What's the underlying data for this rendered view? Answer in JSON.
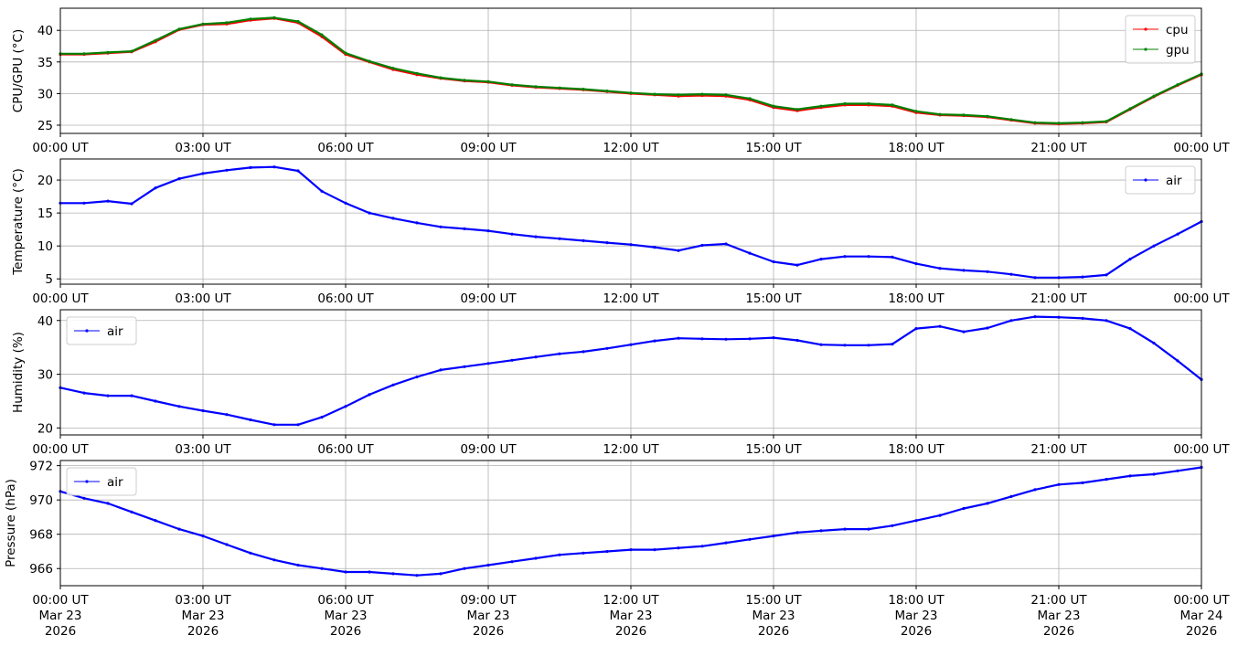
{
  "colors": {
    "cpu": "#ff0000",
    "gpu": "#008000",
    "air": "#0000ff",
    "grid": "#b0b0b0"
  },
  "x_ticks": [
    "00:00 UT",
    "03:00 UT",
    "06:00 UT",
    "09:00 UT",
    "12:00 UT",
    "15:00 UT",
    "18:00 UT",
    "21:00 UT",
    "00:00 UT"
  ],
  "x_ticks_bottom": [
    [
      "00:00 UT",
      "Mar 23",
      "2026"
    ],
    [
      "03:00 UT",
      "Mar 23",
      "2026"
    ],
    [
      "06:00 UT",
      "Mar 23",
      "2026"
    ],
    [
      "09:00 UT",
      "Mar 23",
      "2026"
    ],
    [
      "12:00 UT",
      "Mar 23",
      "2026"
    ],
    [
      "15:00 UT",
      "Mar 23",
      "2026"
    ],
    [
      "18:00 UT",
      "Mar 23",
      "2026"
    ],
    [
      "21:00 UT",
      "Mar 23",
      "2026"
    ],
    [
      "00:00 UT",
      "Mar 24",
      "2026"
    ]
  ],
  "chart_data": [
    {
      "type": "line",
      "ylabel": "CPU/GPU (°C)",
      "ylim": [
        23.7,
        43.5
      ],
      "yticks": [
        25,
        30,
        35,
        40
      ],
      "grid": true,
      "legend": "top-right",
      "x": [
        "2026-03-23T00:00",
        "2026-03-23T00:30",
        "2026-03-23T01:00",
        "2026-03-23T01:30",
        "2026-03-23T02:00",
        "2026-03-23T02:30",
        "2026-03-23T03:00",
        "2026-03-23T03:30",
        "2026-03-23T04:00",
        "2026-03-23T04:30",
        "2026-03-23T05:00",
        "2026-03-23T05:30",
        "2026-03-23T06:00",
        "2026-03-23T06:30",
        "2026-03-23T07:00",
        "2026-03-23T07:30",
        "2026-03-23T08:00",
        "2026-03-23T08:30",
        "2026-03-23T09:00",
        "2026-03-23T09:30",
        "2026-03-23T10:00",
        "2026-03-23T10:30",
        "2026-03-23T11:00",
        "2026-03-23T11:30",
        "2026-03-23T12:00",
        "2026-03-23T12:30",
        "2026-03-23T13:00",
        "2026-03-23T13:30",
        "2026-03-23T14:00",
        "2026-03-23T14:30",
        "2026-03-23T15:00",
        "2026-03-23T15:30",
        "2026-03-23T16:00",
        "2026-03-23T16:30",
        "2026-03-23T17:00",
        "2026-03-23T17:30",
        "2026-03-23T18:00",
        "2026-03-23T18:30",
        "2026-03-23T19:00",
        "2026-03-23T19:30",
        "2026-03-23T20:00",
        "2026-03-23T20:30",
        "2026-03-23T21:00",
        "2026-03-23T21:30",
        "2026-03-23T22:00",
        "2026-03-23T22:30",
        "2026-03-23T23:00",
        "2026-03-23T23:30",
        "2026-03-24T00:00"
      ],
      "series": [
        {
          "name": "cpu",
          "color": "#ff0000",
          "values": [
            36.2,
            36.2,
            36.4,
            36.6,
            38.2,
            40.1,
            40.9,
            41.0,
            41.6,
            41.9,
            41.2,
            39.0,
            36.2,
            35.0,
            33.8,
            33.0,
            32.4,
            32.0,
            31.8,
            31.3,
            31.0,
            30.8,
            30.6,
            30.3,
            30.0,
            29.8,
            29.6,
            29.7,
            29.6,
            29.0,
            27.8,
            27.3,
            27.8,
            28.2,
            28.2,
            28.0,
            27.0,
            26.6,
            26.5,
            26.3,
            25.8,
            25.3,
            25.2,
            25.3,
            25.5,
            27.5,
            29.5,
            31.3,
            33.0
          ]
        },
        {
          "name": "gpu",
          "color": "#008000",
          "values": [
            36.3,
            36.3,
            36.5,
            36.7,
            38.4,
            40.2,
            41.0,
            41.2,
            41.8,
            42.0,
            41.4,
            39.3,
            36.4,
            35.1,
            34.0,
            33.2,
            32.5,
            32.1,
            31.9,
            31.4,
            31.1,
            30.9,
            30.7,
            30.4,
            30.1,
            29.9,
            29.8,
            29.9,
            29.8,
            29.2,
            28.0,
            27.5,
            28.0,
            28.4,
            28.4,
            28.2,
            27.2,
            26.7,
            26.6,
            26.4,
            25.9,
            25.4,
            25.3,
            25.4,
            25.6,
            27.6,
            29.6,
            31.4,
            33.1
          ]
        }
      ]
    },
    {
      "type": "line",
      "ylabel": "Temperature (°C)",
      "ylim": [
        4.2,
        23.2
      ],
      "yticks": [
        5,
        10,
        15,
        20
      ],
      "grid": true,
      "legend": "top-right",
      "x": [
        "2026-03-23T00:00",
        "2026-03-23T00:30",
        "2026-03-23T01:00",
        "2026-03-23T01:30",
        "2026-03-23T02:00",
        "2026-03-23T02:30",
        "2026-03-23T03:00",
        "2026-03-23T03:30",
        "2026-03-23T04:00",
        "2026-03-23T04:30",
        "2026-03-23T05:00",
        "2026-03-23T05:30",
        "2026-03-23T06:00",
        "2026-03-23T06:30",
        "2026-03-23T07:00",
        "2026-03-23T07:30",
        "2026-03-23T08:00",
        "2026-03-23T08:30",
        "2026-03-23T09:00",
        "2026-03-23T09:30",
        "2026-03-23T10:00",
        "2026-03-23T10:30",
        "2026-03-23T11:00",
        "2026-03-23T11:30",
        "2026-03-23T12:00",
        "2026-03-23T12:30",
        "2026-03-23T13:00",
        "2026-03-23T13:30",
        "2026-03-23T14:00",
        "2026-03-23T14:30",
        "2026-03-23T15:00",
        "2026-03-23T15:30",
        "2026-03-23T16:00",
        "2026-03-23T16:30",
        "2026-03-23T17:00",
        "2026-03-23T17:30",
        "2026-03-23T18:00",
        "2026-03-23T18:30",
        "2026-03-23T19:00",
        "2026-03-23T19:30",
        "2026-03-23T20:00",
        "2026-03-23T20:30",
        "2026-03-23T21:00",
        "2026-03-23T21:30",
        "2026-03-23T22:00",
        "2026-03-23T22:30",
        "2026-03-23T23:00",
        "2026-03-23T23:30",
        "2026-03-24T00:00"
      ],
      "series": [
        {
          "name": "air",
          "color": "#0000ff",
          "values": [
            16.5,
            16.5,
            16.8,
            16.4,
            18.8,
            20.2,
            21.0,
            21.5,
            21.9,
            22.0,
            21.4,
            18.3,
            16.5,
            15.0,
            14.2,
            13.5,
            12.9,
            12.6,
            12.3,
            11.8,
            11.4,
            11.1,
            10.8,
            10.5,
            10.2,
            9.8,
            9.3,
            10.1,
            10.3,
            8.9,
            7.6,
            7.1,
            8.0,
            8.4,
            8.4,
            8.3,
            7.3,
            6.6,
            6.3,
            6.1,
            5.7,
            5.2,
            5.2,
            5.3,
            5.6,
            8.0,
            10.0,
            11.8,
            13.7
          ]
        }
      ]
    },
    {
      "type": "line",
      "ylabel": "Humidity (%)",
      "ylim": [
        18.7,
        42.0
      ],
      "yticks": [
        20,
        30,
        40
      ],
      "grid": true,
      "legend": "top-left",
      "x": [
        "2026-03-23T00:00",
        "2026-03-23T00:30",
        "2026-03-23T01:00",
        "2026-03-23T01:30",
        "2026-03-23T02:00",
        "2026-03-23T02:30",
        "2026-03-23T03:00",
        "2026-03-23T03:30",
        "2026-03-23T04:00",
        "2026-03-23T04:30",
        "2026-03-23T05:00",
        "2026-03-23T05:30",
        "2026-03-23T06:00",
        "2026-03-23T06:30",
        "2026-03-23T07:00",
        "2026-03-23T07:30",
        "2026-03-23T08:00",
        "2026-03-23T08:30",
        "2026-03-23T09:00",
        "2026-03-23T09:30",
        "2026-03-23T10:00",
        "2026-03-23T10:30",
        "2026-03-23T11:00",
        "2026-03-23T11:30",
        "2026-03-23T12:00",
        "2026-03-23T12:30",
        "2026-03-23T13:00",
        "2026-03-23T13:30",
        "2026-03-23T14:00",
        "2026-03-23T14:30",
        "2026-03-23T15:00",
        "2026-03-23T15:30",
        "2026-03-23T16:00",
        "2026-03-23T16:30",
        "2026-03-23T17:00",
        "2026-03-23T17:30",
        "2026-03-23T18:00",
        "2026-03-23T18:30",
        "2026-03-23T19:00",
        "2026-03-23T19:30",
        "2026-03-23T20:00",
        "2026-03-23T20:30",
        "2026-03-23T21:00",
        "2026-03-23T21:30",
        "2026-03-23T22:00",
        "2026-03-23T22:30",
        "2026-03-23T23:00",
        "2026-03-23T23:30",
        "2026-03-24T00:00"
      ],
      "series": [
        {
          "name": "air",
          "color": "#0000ff",
          "values": [
            27.5,
            26.5,
            26.0,
            26.0,
            25.0,
            24.0,
            23.2,
            22.5,
            21.5,
            20.6,
            20.6,
            22.0,
            24.0,
            26.2,
            28.0,
            29.5,
            30.8,
            31.4,
            32.0,
            32.6,
            33.2,
            33.8,
            34.2,
            34.8,
            35.5,
            36.2,
            36.7,
            36.6,
            36.5,
            36.6,
            36.8,
            36.3,
            35.5,
            35.4,
            35.4,
            35.6,
            38.5,
            38.9,
            37.9,
            38.6,
            40.0,
            40.7,
            40.6,
            40.4,
            40.0,
            38.5,
            35.8,
            32.5,
            29.0
          ]
        }
      ]
    },
    {
      "type": "line",
      "ylabel": "Pressure (hPa)",
      "ylim": [
        965.0,
        972.3
      ],
      "yticks": [
        966,
        968,
        970,
        972
      ],
      "grid": true,
      "legend": "top-left",
      "x": [
        "2026-03-23T00:00",
        "2026-03-23T00:30",
        "2026-03-23T01:00",
        "2026-03-23T01:30",
        "2026-03-23T02:00",
        "2026-03-23T02:30",
        "2026-03-23T03:00",
        "2026-03-23T03:30",
        "2026-03-23T04:00",
        "2026-03-23T04:30",
        "2026-03-23T05:00",
        "2026-03-23T05:30",
        "2026-03-23T06:00",
        "2026-03-23T06:30",
        "2026-03-23T07:00",
        "2026-03-23T07:30",
        "2026-03-23T08:00",
        "2026-03-23T08:30",
        "2026-03-23T09:00",
        "2026-03-23T09:30",
        "2026-03-23T10:00",
        "2026-03-23T10:30",
        "2026-03-23T11:00",
        "2026-03-23T11:30",
        "2026-03-23T12:00",
        "2026-03-23T12:30",
        "2026-03-23T13:00",
        "2026-03-23T13:30",
        "2026-03-23T14:00",
        "2026-03-23T14:30",
        "2026-03-23T15:00",
        "2026-03-23T15:30",
        "2026-03-23T16:00",
        "2026-03-23T16:30",
        "2026-03-23T17:00",
        "2026-03-23T17:30",
        "2026-03-23T18:00",
        "2026-03-23T18:30",
        "2026-03-23T19:00",
        "2026-03-23T19:30",
        "2026-03-23T20:00",
        "2026-03-23T20:30",
        "2026-03-23T21:00",
        "2026-03-23T21:30",
        "2026-03-23T22:00",
        "2026-03-23T22:30",
        "2026-03-23T23:00",
        "2026-03-23T23:30",
        "2026-03-24T00:00"
      ],
      "series": [
        {
          "name": "air",
          "color": "#0000ff",
          "values": [
            970.5,
            970.1,
            969.8,
            969.3,
            968.8,
            968.3,
            967.9,
            967.4,
            966.9,
            966.5,
            966.2,
            966.0,
            965.8,
            965.8,
            965.7,
            965.6,
            965.7,
            966.0,
            966.2,
            966.4,
            966.6,
            966.8,
            966.9,
            967.0,
            967.1,
            967.1,
            967.2,
            967.3,
            967.5,
            967.7,
            967.9,
            968.1,
            968.2,
            968.3,
            968.3,
            968.5,
            968.8,
            969.1,
            969.5,
            969.8,
            970.2,
            970.6,
            970.9,
            971.0,
            971.2,
            971.4,
            971.5,
            971.7,
            971.9
          ]
        }
      ]
    }
  ]
}
